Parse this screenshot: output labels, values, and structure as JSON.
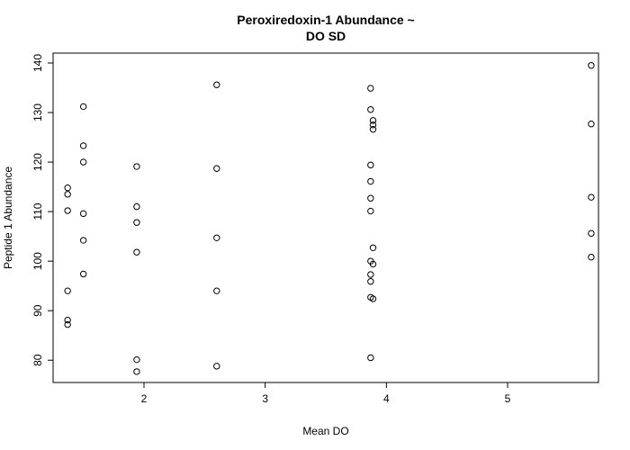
{
  "chart_data": {
    "type": "scatter",
    "title_line1": "Peroxiredoxin-1 Abundance ~",
    "title_line2": "DO SD",
    "xlabel": "Mean DO",
    "ylabel": "Peptide 1 Abundance",
    "xlim": [
      1.25,
      5.75
    ],
    "ylim": [
      75.5,
      142
    ],
    "x_ticks": [
      2,
      3,
      4,
      5
    ],
    "y_ticks": [
      80,
      90,
      100,
      110,
      120,
      130,
      140
    ],
    "grid": false,
    "legend": "none",
    "marker": "open-circle",
    "points": [
      {
        "x": 1.37,
        "y": 114.8
      },
      {
        "x": 1.37,
        "y": 113.5
      },
      {
        "x": 1.37,
        "y": 110.2
      },
      {
        "x": 1.37,
        "y": 94.0
      },
      {
        "x": 1.37,
        "y": 88.1
      },
      {
        "x": 1.37,
        "y": 87.2
      },
      {
        "x": 1.5,
        "y": 131.2
      },
      {
        "x": 1.5,
        "y": 123.3
      },
      {
        "x": 1.5,
        "y": 120.0
      },
      {
        "x": 1.5,
        "y": 109.6
      },
      {
        "x": 1.5,
        "y": 104.2
      },
      {
        "x": 1.5,
        "y": 97.4
      },
      {
        "x": 1.94,
        "y": 119.1
      },
      {
        "x": 1.94,
        "y": 111.0
      },
      {
        "x": 1.94,
        "y": 107.8
      },
      {
        "x": 1.94,
        "y": 101.8
      },
      {
        "x": 1.94,
        "y": 80.1
      },
      {
        "x": 1.94,
        "y": 77.7
      },
      {
        "x": 2.6,
        "y": 135.6
      },
      {
        "x": 2.6,
        "y": 118.7
      },
      {
        "x": 2.6,
        "y": 104.7
      },
      {
        "x": 2.6,
        "y": 94.0
      },
      {
        "x": 2.6,
        "y": 78.8
      },
      {
        "x": 3.87,
        "y": 134.9
      },
      {
        "x": 3.87,
        "y": 130.6
      },
      {
        "x": 3.89,
        "y": 128.4
      },
      {
        "x": 3.89,
        "y": 127.5
      },
      {
        "x": 3.89,
        "y": 126.6
      },
      {
        "x": 3.87,
        "y": 119.4
      },
      {
        "x": 3.87,
        "y": 116.1
      },
      {
        "x": 3.87,
        "y": 112.7
      },
      {
        "x": 3.87,
        "y": 110.1
      },
      {
        "x": 3.89,
        "y": 102.7
      },
      {
        "x": 3.87,
        "y": 100.0
      },
      {
        "x": 3.89,
        "y": 99.4
      },
      {
        "x": 3.87,
        "y": 97.3
      },
      {
        "x": 3.87,
        "y": 95.9
      },
      {
        "x": 3.87,
        "y": 92.7
      },
      {
        "x": 3.89,
        "y": 92.4
      },
      {
        "x": 3.87,
        "y": 80.5
      },
      {
        "x": 5.69,
        "y": 139.5
      },
      {
        "x": 5.69,
        "y": 127.7
      },
      {
        "x": 5.69,
        "y": 112.9
      },
      {
        "x": 5.69,
        "y": 105.6
      },
      {
        "x": 5.69,
        "y": 100.8
      }
    ]
  }
}
